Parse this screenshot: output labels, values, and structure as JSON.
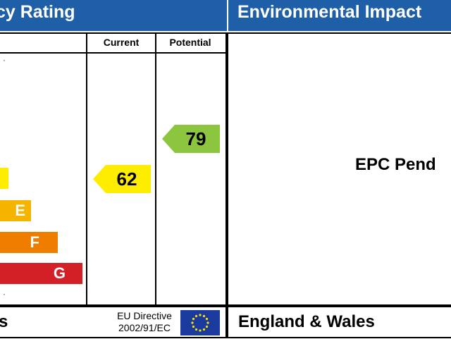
{
  "header": {
    "left_title": "cy Rating",
    "right_title": "Environmental Impact"
  },
  "table": {
    "col_current": "Current",
    "col_potential": "Potential"
  },
  "bands": [
    {
      "letter": "",
      "color": "#ffed00"
    },
    {
      "letter": "E",
      "color": "#f4b400"
    },
    {
      "letter": "F",
      "color": "#ef7d00"
    },
    {
      "letter": "G",
      "color": "#d32027"
    }
  ],
  "ratings": {
    "current": {
      "value": "62",
      "color": "#ffed00"
    },
    "potential": {
      "value": "79",
      "color": "#8cc63f"
    }
  },
  "right_panel": {
    "pending_text": "EPC Pend"
  },
  "footer": {
    "left_country": "s",
    "eu_line1": "EU Directive",
    "eu_line2": "2002/91/EC",
    "right_country": "England & Wales"
  }
}
